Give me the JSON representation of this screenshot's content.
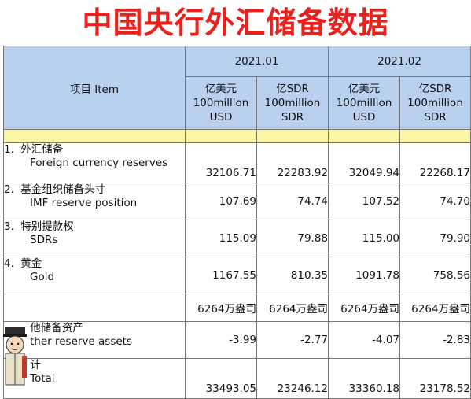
{
  "title": "中国央行外汇储备数据",
  "header": {
    "item": "项目 Item",
    "months": [
      "2021.01",
      "2021.02"
    ],
    "units": {
      "usd_cn": "亿美元",
      "usd_en1": "100million",
      "usd_en2": "USD",
      "sdr_cn": "亿SDR",
      "sdr_en1": "100million",
      "sdr_en2": "SDR"
    }
  },
  "rows": [
    {
      "num": "1.",
      "cn": "外汇储备",
      "en": "Foreign currency reserves",
      "v": [
        "32106.71",
        "22283.92",
        "32049.94",
        "22268.17"
      ]
    },
    {
      "num": "2.",
      "cn": "基金组织储备头寸",
      "en": "IMF reserve position",
      "v": [
        "107.69",
        "74.74",
        "107.52",
        "74.70"
      ]
    },
    {
      "num": "3.",
      "cn": "特别提款权",
      "en": "SDRs",
      "v": [
        "115.09",
        "79.88",
        "115.00",
        "79.90"
      ]
    },
    {
      "num": "4.",
      "cn": "黄金",
      "en": "Gold",
      "v": [
        "1167.55",
        "810.35",
        "1091.78",
        "758.56"
      ]
    },
    {
      "num": "",
      "cn": "",
      "en": "",
      "v": [
        "6264万盎司",
        "6264万盎司",
        "6264万盎司",
        "6264万盎司"
      ]
    },
    {
      "num": "",
      "cn": "他储备资产",
      "en": "ther reserve assets",
      "v": [
        "-3.99",
        "-2.77",
        "-4.07",
        "-2.83"
      ]
    },
    {
      "num": "",
      "cn": "计",
      "en": "Total",
      "v": [
        "33493.05",
        "23246.12",
        "33360.18",
        "23178.52"
      ]
    }
  ],
  "watermark_icon": "cartoon-figure-icon",
  "colors": {
    "title": "#e8211d",
    "header_bg": "#b9d1ef",
    "band_bg": "#fbf6a4"
  }
}
